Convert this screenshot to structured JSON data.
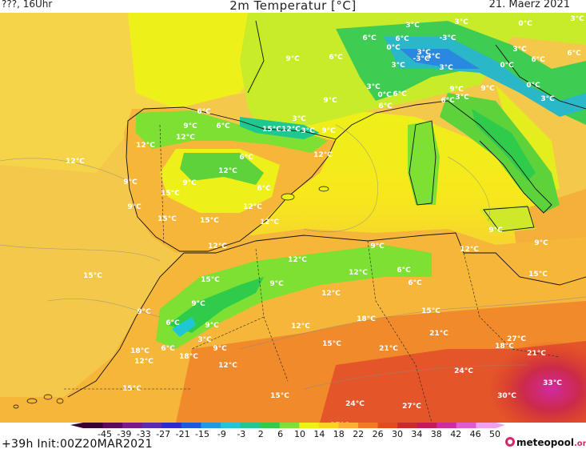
{
  "header": {
    "left": "???, 16Uhr",
    "title": "2m Temperatur [°C]",
    "date": "21. Maerz 2021"
  },
  "footer": {
    "run": "+39h Init:00Z20MAR2021",
    "brand": "meteopool",
    "brand_tld": ".org"
  },
  "scale": {
    "ticks": [
      "-45",
      "-39",
      "-33",
      "-27",
      "-21",
      "-15",
      "-9",
      "-3",
      "2",
      "6",
      "10",
      "14",
      "18",
      "22",
      "26",
      "30",
      "34",
      "38",
      "42",
      "46",
      "50"
    ],
    "colors": [
      "#3a0030",
      "#5c0a5c",
      "#7a1a8a",
      "#5a2ab0",
      "#2d2ad4",
      "#1a5ae0",
      "#1a9ae8",
      "#1ec6d8",
      "#1ec890",
      "#2ecc4a",
      "#7ee032",
      "#eef01a",
      "#ffd22a",
      "#ffb030",
      "#f67a22",
      "#e44a1a",
      "#cc2a2a",
      "#c81a5a",
      "#d02aa0",
      "#e05ad0",
      "#f0a0f0"
    ]
  },
  "map_colors": {
    "sea_cool": "#c8ec2a",
    "sea_warm": "#f4c84a",
    "land_mild": "#f6b63a",
    "land_hot": "#e8722a",
    "sahara": "#d83a22",
    "mountain": "#3ecc52",
    "alps": "#2aa8e8"
  },
  "labels": [
    {
      "t": "3°C"
    },
    {
      "t": "3°C"
    },
    {
      "t": "0°C"
    },
    {
      "t": "3°C"
    },
    {
      "t": "6°C"
    },
    {
      "t": "6°C"
    },
    {
      "t": "-3°C"
    },
    {
      "t": "0°C"
    },
    {
      "t": "3°C"
    },
    {
      "t": "3°C"
    },
    {
      "t": "6°C"
    },
    {
      "t": "9°C"
    },
    {
      "t": "6°C"
    },
    {
      "t": "3°C"
    },
    {
      "t": "3°C"
    },
    {
      "t": "3°C"
    },
    {
      "t": "-3°C"
    },
    {
      "t": "0°C"
    },
    {
      "t": "6°C"
    },
    {
      "t": "3°C"
    },
    {
      "t": "9°C"
    },
    {
      "t": "0°C"
    },
    {
      "t": "6°C"
    },
    {
      "t": "3°C"
    },
    {
      "t": "9°C"
    },
    {
      "t": "0°C"
    },
    {
      "t": "3°C"
    },
    {
      "t": "6°C"
    },
    {
      "t": "9°C"
    },
    {
      "t": "6°C"
    },
    {
      "t": "6°C"
    },
    {
      "t": "3°C"
    },
    {
      "t": "9°C"
    },
    {
      "t": "6°C"
    },
    {
      "t": "9°C"
    },
    {
      "t": "12°C"
    },
    {
      "t": "12°C"
    },
    {
      "t": "15°C"
    },
    {
      "t": "12°C"
    },
    {
      "t": "3°C"
    },
    {
      "t": "6°C"
    },
    {
      "t": "12°C"
    },
    {
      "t": "9°C"
    },
    {
      "t": "6°C"
    },
    {
      "t": "12°C"
    },
    {
      "t": "12°C"
    },
    {
      "t": "9°C"
    },
    {
      "t": "15°C"
    },
    {
      "t": "9°C"
    },
    {
      "t": "12°C"
    },
    {
      "t": "15°C"
    },
    {
      "t": "15°C"
    },
    {
      "t": "12°C"
    },
    {
      "t": "12°C"
    },
    {
      "t": "9°C"
    },
    {
      "t": "9°C"
    },
    {
      "t": "9°C"
    },
    {
      "t": "12°C"
    },
    {
      "t": "12°C"
    },
    {
      "t": "15°C"
    },
    {
      "t": "9°C"
    },
    {
      "t": "12°C"
    },
    {
      "t": "6°C"
    },
    {
      "t": "6°C"
    },
    {
      "t": "12°C"
    },
    {
      "t": "9°C"
    },
    {
      "t": "9°C"
    },
    {
      "t": "15°C"
    },
    {
      "t": "15°C"
    },
    {
      "t": "9°C"
    },
    {
      "t": "6°C"
    },
    {
      "t": "3°C"
    },
    {
      "t": "9°C"
    },
    {
      "t": "12°C"
    },
    {
      "t": "18°C"
    },
    {
      "t": "15°C"
    },
    {
      "t": "6°C"
    },
    {
      "t": "12°C"
    },
    {
      "t": "18°C"
    },
    {
      "t": "18°C"
    },
    {
      "t": "12°C"
    },
    {
      "t": "15°C"
    },
    {
      "t": "21°C"
    },
    {
      "t": "21°C"
    },
    {
      "t": "27°C"
    },
    {
      "t": "18°C"
    },
    {
      "t": "21°C"
    },
    {
      "t": "24°C"
    },
    {
      "t": "33°C"
    },
    {
      "t": "15°C"
    },
    {
      "t": "30°C"
    },
    {
      "t": "15°C"
    },
    {
      "t": "24°C"
    },
    {
      "t": "27°C"
    },
    {
      "t": "18°C"
    },
    {
      "t": "27°C"
    },
    {
      "t": "30°C"
    }
  ]
}
